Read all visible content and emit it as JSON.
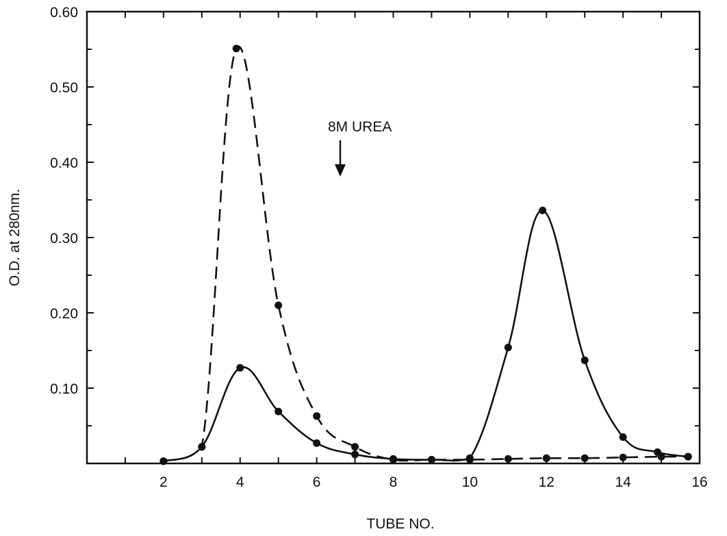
{
  "chart_data": {
    "type": "line",
    "title": "",
    "xlabel": "TUBE NO.",
    "ylabel": "O.D. at 280nm.",
    "xlim": [
      0,
      16
    ],
    "ylim": [
      0,
      0.6
    ],
    "x_ticks": [
      2,
      4,
      6,
      8,
      10,
      12,
      14,
      16
    ],
    "y_ticks": [
      0.1,
      0.2,
      0.3,
      0.4,
      0.5,
      0.6
    ],
    "x_tick_labels": [
      "2",
      "4",
      "6",
      "8",
      "10",
      "12",
      "14",
      "16"
    ],
    "y_tick_labels": [
      "0.10",
      "0.20",
      "0.30",
      "0.40",
      "0.50",
      "0.60"
    ],
    "grid": false,
    "legend": "none",
    "annotation": {
      "text": "8M UREA",
      "x": 6.7,
      "y": 0.4,
      "arrow": "down"
    },
    "series": [
      {
        "style": "dashed",
        "x": [
          2,
          3,
          3.9,
          5,
          6,
          7,
          8,
          9,
          10,
          11,
          12,
          13,
          14,
          15,
          15.7
        ],
        "y": [
          0.003,
          0.022,
          0.551,
          0.21,
          0.063,
          0.022,
          0.005,
          0.005,
          0.005,
          0.006,
          0.007,
          0.007,
          0.008,
          0.009,
          0.009
        ]
      },
      {
        "style": "solid",
        "x": [
          2,
          3,
          4,
          5,
          6,
          7,
          8,
          9,
          10,
          11,
          11.9,
          13,
          14,
          14.9,
          15.7
        ],
        "y": [
          0.003,
          0.022,
          0.127,
          0.069,
          0.027,
          0.012,
          0.006,
          0.005,
          0.007,
          0.154,
          0.336,
          0.137,
          0.035,
          0.015,
          0.009
        ]
      }
    ]
  }
}
